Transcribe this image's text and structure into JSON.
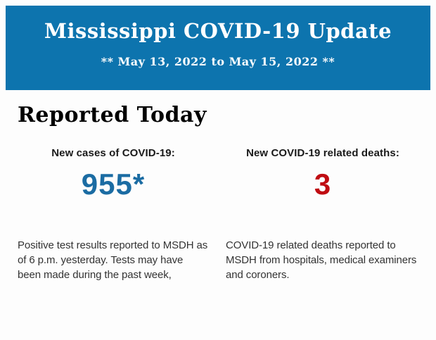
{
  "header": {
    "title": "Mississippi COVID-19 Update",
    "subtitle": "** May 13, 2022 to May 15, 2022 **",
    "background_color": "#0d74ae",
    "text_color": "#ffffff"
  },
  "section": {
    "heading": "Reported Today"
  },
  "stats": {
    "cases": {
      "label": "New cases of COVID-19:",
      "value": "955*",
      "value_color": "#1b6ca3",
      "description": "Positive test results reported to MSDH as of 6 p.m. yesterday. Tests may have been made during the past week,"
    },
    "deaths": {
      "label": "New COVID-19 related deaths:",
      "value": "3",
      "value_color": "#c00c12",
      "description": "COVID-19 related deaths reported to MSDH from hospitals, medical examiners and coroners."
    }
  }
}
